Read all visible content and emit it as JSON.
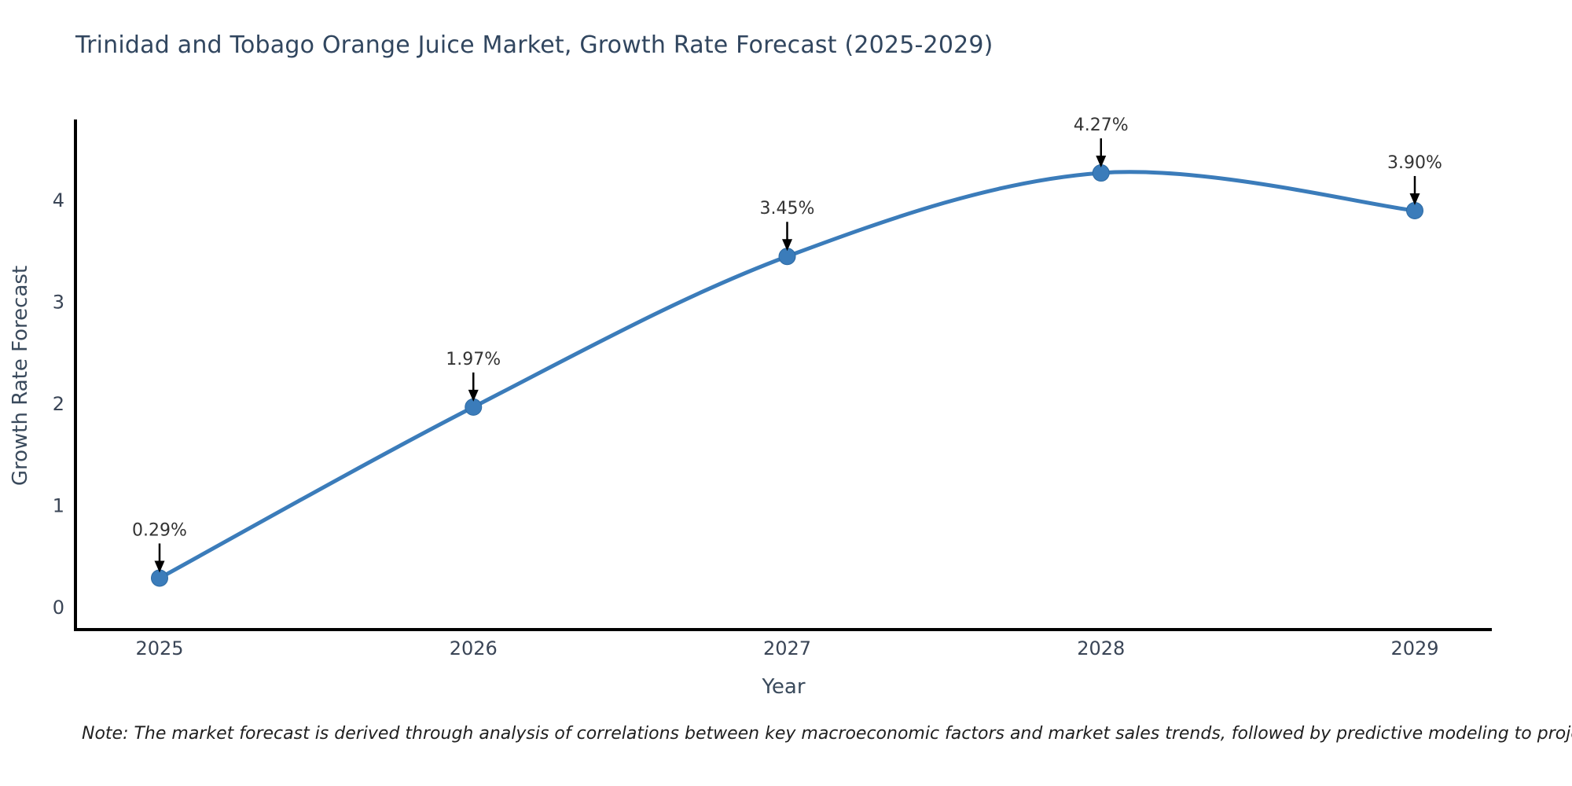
{
  "chart_data": {
    "type": "line",
    "title": "Trinidad and Tobago Orange Juice Market, Growth Rate Forecast (2025-2029)",
    "xlabel": "Year",
    "ylabel": "Growth Rate Forecast",
    "x": [
      2025,
      2026,
      2027,
      2028,
      2029
    ],
    "values": [
      0.29,
      1.97,
      3.45,
      4.27,
      3.9
    ],
    "point_labels": [
      "0.29%",
      "1.97%",
      "3.45%",
      "4.27%",
      "3.90%"
    ],
    "yticks": [
      0,
      1,
      2,
      3,
      4
    ],
    "xticks": [
      "2025",
      "2026",
      "2027",
      "2028",
      "2029"
    ],
    "xlim": [
      2024.73,
      2029.25
    ],
    "ylim": [
      -0.22,
      4.8
    ],
    "grid": false,
    "legend": "none",
    "smooth": true,
    "note": "Note: The market forecast is derived through analysis of correlations between key macroeconomic factors and market sales trends, followed by predictive modeling to project future sales.",
    "colors": {
      "line": "#3b7cba",
      "marker": "#3b7cba",
      "marker_edge": "#2d6aa3",
      "spine": "#000000",
      "annotation_text": "#333333",
      "annotation_arrow": "#000000",
      "tick_text": "#3a4556",
      "title_text": "#31465f",
      "axis_label_text": "#3a4a5c",
      "note_text": "#1f1f1f",
      "background": "#ffffff"
    }
  }
}
